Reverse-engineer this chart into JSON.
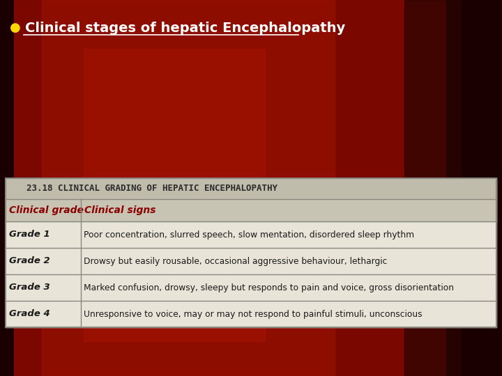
{
  "bullet_text": "Clinical stages of hepatic Encephalopathy",
  "table_title": "23.18 CLINICAL GRADING OF HEPATIC ENCEPHALOPATHY",
  "col_headers": [
    "Clinical grade",
    "Clinical signs"
  ],
  "rows": [
    [
      "Grade 1",
      "Poor concentration, slurred speech, slow mentation, disordered sleep rhythm"
    ],
    [
      "Grade 2",
      "Drowsy but easily rousable, occasional aggressive behaviour, lethargic"
    ],
    [
      "Grade 3",
      "Marked confusion, drowsy, sleepy but responds to pain and voice, gross disorientation"
    ],
    [
      "Grade 4",
      "Unresponsive to voice, may or may not respond to painful stimuli, unconscious"
    ]
  ],
  "bg_dark": "#1a0000",
  "table_bg": "#e8e4d8",
  "table_header_bg": "#c8c4b4",
  "table_title_bg": "#c0bcac",
  "border_color": "#888880",
  "title_text_color": "#2a2a2a",
  "header_text_color": "#8B0000",
  "row_text_color": "#1a1a1a",
  "bullet_color": "#FFD700",
  "bullet_text_color": "#ffffff",
  "figsize": [
    7.2,
    5.4
  ],
  "dpi": 100
}
